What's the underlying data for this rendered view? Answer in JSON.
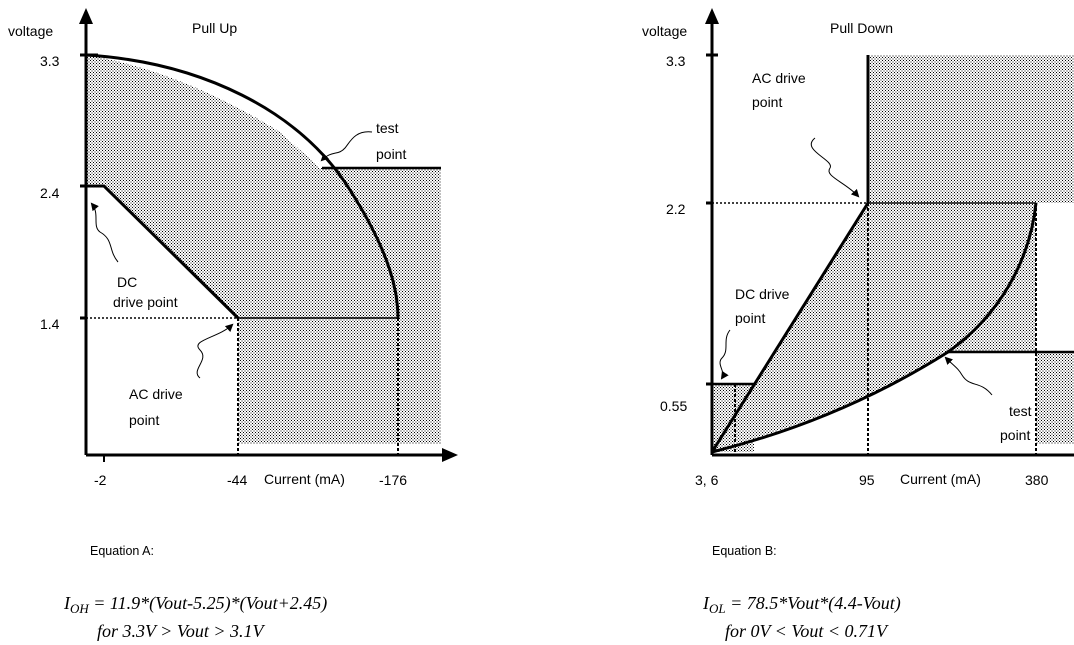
{
  "pullup": {
    "y_axis_label": "voltage",
    "title": "Pull Up",
    "x_axis_label": "Current (mA)",
    "y_ticks": [
      "3.3",
      "2.4",
      "1.4"
    ],
    "x_ticks": [
      "-2",
      "-44",
      "-176"
    ],
    "test_point_line1": "test",
    "test_point_line2": "point",
    "dc_drive_line1": "DC",
    "dc_drive_line2": "drive point",
    "ac_drive_line1": "AC drive",
    "ac_drive_line2": "point"
  },
  "pulldown": {
    "y_axis_label": "voltage",
    "title": "Pull Down",
    "x_axis_label": "Current (mA)",
    "y_ticks": [
      "3.3",
      "2.2",
      "0.55"
    ],
    "x_ticks": [
      "3, 6",
      "95",
      "380"
    ],
    "ac_drive_line1": "AC drive",
    "ac_drive_line2": "point",
    "dc_drive_line1": "DC drive",
    "dc_drive_line2": "point",
    "test_point_line1": "test",
    "test_point_line2": "point"
  },
  "equation_a": {
    "label": "Equation A:",
    "lhs_main": "I",
    "lhs_sub": "OH",
    "rhs": " = 11.9*(Vout-5.25)*(Vout+2.45)",
    "condition": "for 3.3V > Vout > 3.1V"
  },
  "equation_b": {
    "label": "Equation B:",
    "lhs_main": "I",
    "lhs_sub": "OL",
    "rhs": " = 78.5*Vout*(4.4-Vout)",
    "condition": "for 0V < Vout < 0.71V"
  }
}
